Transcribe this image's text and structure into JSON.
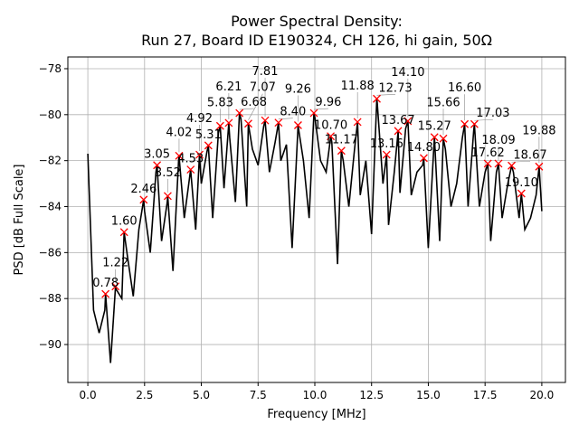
{
  "chart_data": {
    "type": "line",
    "title": "Power Spectral Density:",
    "subtitle": "Run 27, Board ID E190324, CH 126, hi gain, 50Ω",
    "xlabel": "Frequency [MHz]",
    "ylabel": "PSD [dB Full Scale]",
    "xlim": [
      -0.88,
      21.04
    ],
    "ylim": [
      -91.65,
      -77.49
    ],
    "xticks": [
      "0.0",
      "2.5",
      "5.0",
      "7.5",
      "10.0",
      "12.5",
      "15.0",
      "17.5",
      "20.0"
    ],
    "yticks": [
      "-78",
      "-80",
      "-82",
      "-84",
      "-86",
      "-88",
      "-90"
    ],
    "grid": true,
    "line_color": "#000000",
    "marker_color": "#ff0000",
    "series": {
      "x": [
        0,
        0.25,
        0.5,
        0.75,
        1.0,
        1.25,
        1.5,
        1.75,
        2.0,
        2.25,
        2.5,
        2.75,
        3.0,
        3.25,
        3.5,
        3.75,
        4.0,
        4.25,
        4.5,
        4.75,
        5.0,
        5.25,
        5.5,
        5.75,
        6.0,
        6.25,
        6.5,
        6.75,
        7.0,
        7.25,
        7.5,
        7.75,
        8.0,
        8.25,
        8.5,
        8.75,
        9.0,
        9.25,
        9.5,
        9.75,
        10.0,
        10.25,
        10.5,
        10.75,
        11.0,
        11.25,
        11.5,
        11.75,
        12.0,
        12.25,
        12.5,
        12.75,
        13.0,
        13.25,
        13.5,
        13.75,
        14.0,
        14.25,
        14.5,
        14.75,
        15.0,
        15.25,
        15.5,
        15.75,
        16.0,
        16.25,
        16.5,
        16.75,
        17.0,
        17.25,
        17.5,
        17.75,
        18.0,
        18.25,
        18.5,
        18.75,
        19.0,
        19.25,
        19.5,
        19.75,
        20.0
      ],
      "y": [
        -81.7,
        -88.5,
        -89.5,
        -88.5,
        -90.8,
        -87.6,
        -88.0,
        -86.2,
        -87.9,
        -85.0,
        -84.2,
        -86.0,
        -82.5,
        -85.5,
        -83.8,
        -86.8,
        -82.0,
        -84.5,
        -82.6,
        -85.0,
        -83.0,
        -81.6,
        -84.5,
        -80.8,
        -83.2,
        -81.0,
        -83.8,
        -80.2,
        -84.0,
        -81.5,
        -82.2,
        -80.5,
        -82.5,
        -81.2,
        -82.0,
        -81.3,
        -85.8,
        -80.7,
        -82.0,
        -84.5,
        -80.1,
        -82.0,
        -82.5,
        -81.2,
        -86.5,
        -82.0,
        -84.0,
        -81.5,
        -83.5,
        -82.0,
        -85.2,
        -79.5,
        -83.0,
        -84.8,
        -82.5,
        -83.4,
        -80.6,
        -83.5,
        -82.5,
        -82.2,
        -85.8,
        -81.3,
        -85.5,
        -81.5,
        -84.0,
        -83.0,
        -81.0,
        -84.0,
        -80.7,
        -84.0,
        -82.5,
        -85.5,
        -82.5,
        -84.5,
        -83.0,
        -82.5,
        -84.5,
        -85.0,
        -84.5,
        -83.5,
        -84.2
      ]
    },
    "peaks": [
      {
        "x": 0.78,
        "y": -87.8,
        "label": "0.78"
      },
      {
        "x": 1.22,
        "y": -87.47,
        "label": "1.22"
      },
      {
        "x": 1.6,
        "y": -85.11,
        "label": "1.60"
      },
      {
        "x": 2.46,
        "y": -83.7,
        "label": "2.46"
      },
      {
        "x": 3.05,
        "y": -82.2,
        "label": "3.05"
      },
      {
        "x": 3.52,
        "y": -83.54,
        "label": "3.52"
      },
      {
        "x": 4.02,
        "y": -81.79,
        "label": "4.02"
      },
      {
        "x": 4.53,
        "y": -82.39,
        "label": "4.53"
      },
      {
        "x": 4.92,
        "y": -81.74,
        "label": "4.92"
      },
      {
        "x": 5.31,
        "y": -81.34,
        "label": "5.31"
      },
      {
        "x": 5.83,
        "y": -80.49,
        "label": "5.83"
      },
      {
        "x": 6.21,
        "y": -80.36,
        "label": "6.21"
      },
      {
        "x": 6.68,
        "y": -79.93,
        "label": "6.68"
      },
      {
        "x": 7.07,
        "y": -80.39,
        "label": "7.07"
      },
      {
        "x": 7.81,
        "y": -80.25,
        "label": "7.81"
      },
      {
        "x": 8.4,
        "y": -80.35,
        "label": "8.40"
      },
      {
        "x": 9.26,
        "y": -80.46,
        "label": "9.26"
      },
      {
        "x": 9.96,
        "y": -79.93,
        "label": "9.96"
      },
      {
        "x": 10.7,
        "y": -80.94,
        "label": "10.70"
      },
      {
        "x": 11.17,
        "y": -81.57,
        "label": "11.17"
      },
      {
        "x": 11.88,
        "y": -80.32,
        "label": "11.88"
      },
      {
        "x": 12.73,
        "y": -79.31,
        "label": "12.73"
      },
      {
        "x": 13.16,
        "y": -81.74,
        "label": "13.16"
      },
      {
        "x": 13.67,
        "y": -80.71,
        "label": "13.67"
      },
      {
        "x": 14.1,
        "y": -80.28,
        "label": "14.10"
      },
      {
        "x": 14.8,
        "y": -81.89,
        "label": "14.80"
      },
      {
        "x": 15.27,
        "y": -80.98,
        "label": "15.27"
      },
      {
        "x": 15.66,
        "y": -81.04,
        "label": "15.66"
      },
      {
        "x": 16.6,
        "y": -80.41,
        "label": "16.60"
      },
      {
        "x": 17.03,
        "y": -80.41,
        "label": "17.03"
      },
      {
        "x": 17.62,
        "y": -82.13,
        "label": "17.62"
      },
      {
        "x": 18.09,
        "y": -82.13,
        "label": "18.09"
      },
      {
        "x": 18.67,
        "y": -82.22,
        "label": "18.67"
      },
      {
        "x": 19.1,
        "y": -83.43,
        "label": "19.10"
      },
      {
        "x": 19.88,
        "y": -82.26,
        "label": "19.88"
      }
    ]
  }
}
